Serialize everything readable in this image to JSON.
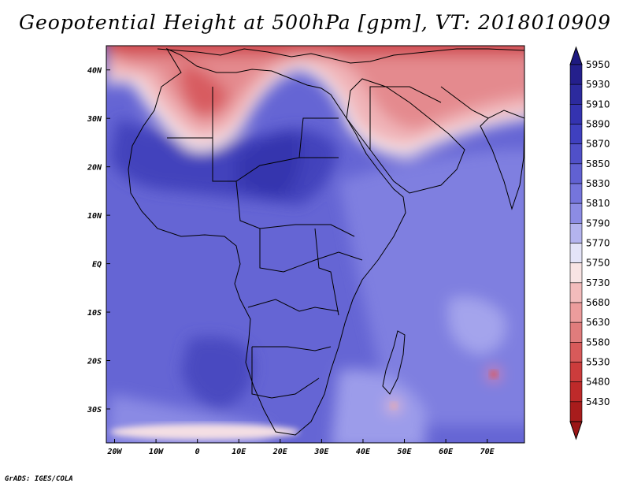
{
  "title": "Geopotential Height at 500hPa [gpm], VT: 2018010909",
  "credit": "GrADS: IGES/COLA",
  "map": {
    "lon_range": [
      -22,
      79
    ],
    "lat_range": [
      -37,
      45
    ],
    "lat_ticks": [
      {
        "value": 40,
        "label": "40N"
      },
      {
        "value": 30,
        "label": "30N"
      },
      {
        "value": 20,
        "label": "20N"
      },
      {
        "value": 10,
        "label": "10N"
      },
      {
        "value": 0,
        "label": "EQ"
      },
      {
        "value": -10,
        "label": "10S"
      },
      {
        "value": -20,
        "label": "20S"
      },
      {
        "value": -30,
        "label": "30S"
      }
    ],
    "lon_ticks": [
      {
        "value": -20,
        "label": "20W"
      },
      {
        "value": -10,
        "label": "10W"
      },
      {
        "value": 0,
        "label": "0"
      },
      {
        "value": 10,
        "label": "10E"
      },
      {
        "value": 20,
        "label": "20E"
      },
      {
        "value": 30,
        "label": "30E"
      },
      {
        "value": 40,
        "label": "40E"
      },
      {
        "value": 50,
        "label": "50E"
      },
      {
        "value": 60,
        "label": "60E"
      },
      {
        "value": 70,
        "label": "70E"
      }
    ]
  },
  "colorbar": {
    "levels": [
      {
        "label": "5950",
        "color": "#241f8c"
      },
      {
        "label": "5930",
        "color": "#2c2a9e"
      },
      {
        "label": "5910",
        "color": "#3433b0"
      },
      {
        "label": "5890",
        "color": "#3f40bf"
      },
      {
        "label": "5870",
        "color": "#5050c8"
      },
      {
        "label": "5850",
        "color": "#6161d2"
      },
      {
        "label": "5830",
        "color": "#7575dc"
      },
      {
        "label": "5810",
        "color": "#8c8ce4"
      },
      {
        "label": "5790",
        "color": "#b4b4ee"
      },
      {
        "label": "5770",
        "color": "#e4e4f8"
      },
      {
        "label": "5750",
        "color": "#f8e4e4"
      },
      {
        "label": "5730",
        "color": "#f3bcbc"
      },
      {
        "label": "5680",
        "color": "#ec9c9c"
      },
      {
        "label": "5630",
        "color": "#e07c7c"
      },
      {
        "label": "5580",
        "color": "#d85a5a"
      },
      {
        "label": "5530",
        "color": "#cc3c3c"
      },
      {
        "label": "5480",
        "color": "#be2a2a"
      },
      {
        "label": "5430",
        "color": "#a81c1c"
      }
    ],
    "top_arrow_color": "#1e1a80",
    "bottom_arrow_color": "#9a1616"
  }
}
